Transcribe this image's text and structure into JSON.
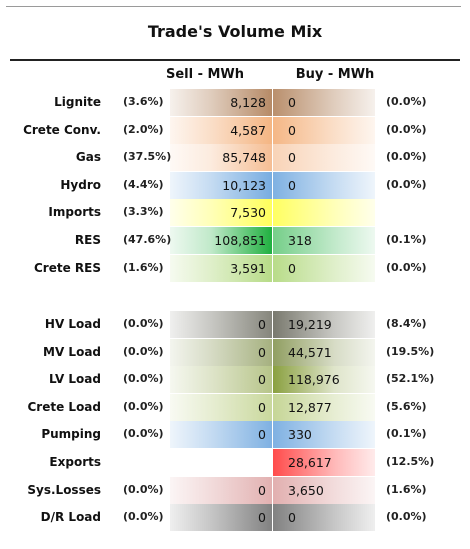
{
  "title": "Trade's Volume Mix",
  "headers": {
    "sell": "Sell - MWh",
    "buy": "Buy - MWh"
  },
  "colors": {
    "Lignite": "#8e4a12",
    "Crete Conv.": "#ee8a3a",
    "Gas": "#f4b88a",
    "Hydro": "#2f80d0",
    "Imports": "#ffff00",
    "RES": "#20b040",
    "Crete RES": "#8cc640",
    "HV Load": "#3a3a2a",
    "MV Load": "#6e8030",
    "LV Load": "#8aa040",
    "Crete Load": "#a8c060",
    "Pumping": "#2f80d0",
    "Exports": "#ff0000",
    "Sys.Losses": "#d08080",
    "D/R Load": "#333333"
  },
  "chart_data": {
    "type": "table",
    "title": "Trade's Volume Mix",
    "columns": [
      "Sell - MWh",
      "Buy - MWh"
    ],
    "rows": [
      {
        "label": "Lignite",
        "sell_pct": "(3.6%)",
        "sell": "8,128",
        "buy": "0",
        "buy_pct": "(0.0%)"
      },
      {
        "label": "Crete Conv.",
        "sell_pct": "(2.0%)",
        "sell": "4,587",
        "buy": "0",
        "buy_pct": "(0.0%)"
      },
      {
        "label": "Gas",
        "sell_pct": "(37.5%)",
        "sell": "85,748",
        "buy": "0",
        "buy_pct": "(0.0%)"
      },
      {
        "label": "Hydro",
        "sell_pct": "(4.4%)",
        "sell": "10,123",
        "buy": "0",
        "buy_pct": "(0.0%)"
      },
      {
        "label": "Imports",
        "sell_pct": "(3.3%)",
        "sell": "7,530",
        "buy": "",
        "buy_pct": ""
      },
      {
        "label": "RES",
        "sell_pct": "(47.6%)",
        "sell": "108,851",
        "buy": "318",
        "buy_pct": "(0.1%)"
      },
      {
        "label": "Crete RES",
        "sell_pct": "(1.6%)",
        "sell": "3,591",
        "buy": "0",
        "buy_pct": "(0.0%)"
      },
      {
        "label": "HV Load",
        "sell_pct": "(0.0%)",
        "sell": "0",
        "buy": "19,219",
        "buy_pct": "(8.4%)"
      },
      {
        "label": "MV Load",
        "sell_pct": "(0.0%)",
        "sell": "0",
        "buy": "44,571",
        "buy_pct": "(19.5%)"
      },
      {
        "label": "LV Load",
        "sell_pct": "(0.0%)",
        "sell": "0",
        "buy": "118,976",
        "buy_pct": "(52.1%)"
      },
      {
        "label": "Crete Load",
        "sell_pct": "(0.0%)",
        "sell": "0",
        "buy": "12,877",
        "buy_pct": "(5.6%)"
      },
      {
        "label": "Pumping",
        "sell_pct": "(0.0%)",
        "sell": "0",
        "buy": "330",
        "buy_pct": "(0.1%)"
      },
      {
        "label": "Exports",
        "sell_pct": "",
        "sell": "",
        "buy": "28,617",
        "buy_pct": "(12.5%)"
      },
      {
        "label": "Sys.Losses",
        "sell_pct": "(0.0%)",
        "sell": "0",
        "buy": "3,650",
        "buy_pct": "(1.6%)"
      },
      {
        "label": "D/R Load",
        "sell_pct": "(0.0%)",
        "sell": "0",
        "buy": "0",
        "buy_pct": "(0.0%)"
      }
    ]
  }
}
